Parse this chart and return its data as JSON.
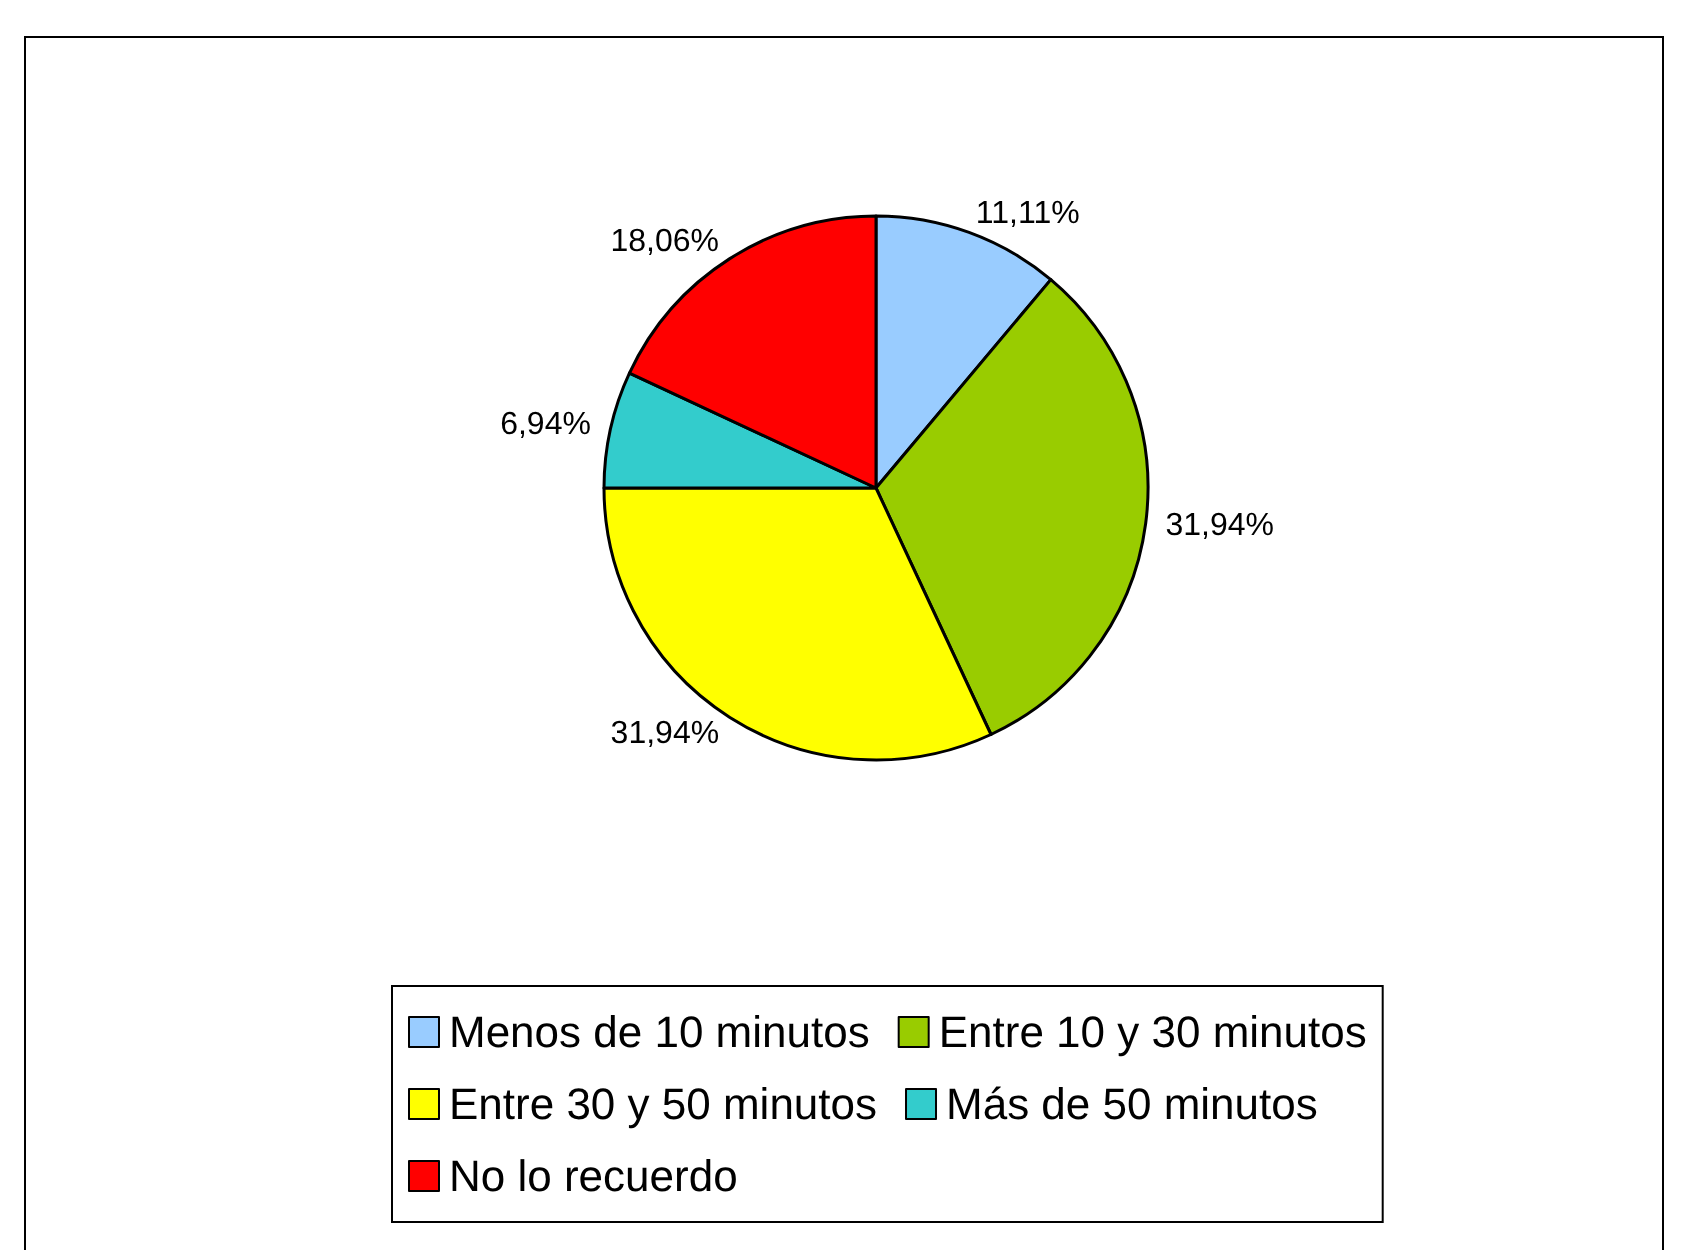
{
  "chart_data": {
    "type": "pie",
    "categories": [
      "Menos de 10 minutos",
      "Entre 10 y 30 minutos",
      "Entre 30 y 50 minutos",
      "Más de 50 minutos",
      "No lo recuerdo"
    ],
    "values": [
      11.11,
      31.94,
      31.94,
      6.94,
      18.06
    ],
    "colors": [
      "#99ccff",
      "#99cc00",
      "#ffff00",
      "#33cccc",
      "#ff0000"
    ],
    "value_labels": [
      "11,11%",
      "31,94%",
      "31,94%",
      "6,94%",
      "18,06%"
    ],
    "legend": "bottom"
  }
}
